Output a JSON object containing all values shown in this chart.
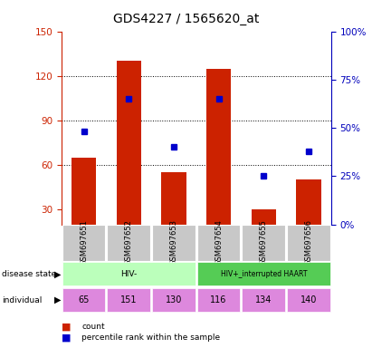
{
  "title": "GDS4227 / 1565620_at",
  "samples": [
    "GSM697651",
    "GSM697652",
    "GSM697653",
    "GSM697654",
    "GSM697655",
    "GSM697656"
  ],
  "counts": [
    65,
    130,
    55,
    125,
    30,
    50
  ],
  "percentiles": [
    48,
    65,
    40,
    65,
    25,
    38
  ],
  "ylim_left": [
    20,
    150
  ],
  "ylim_right": [
    0,
    100
  ],
  "yticks_left": [
    30,
    60,
    90,
    120,
    150
  ],
  "yticks_right": [
    0,
    25,
    50,
    75,
    100
  ],
  "bar_color": "#cc2200",
  "dot_color": "#0000cc",
  "disease_groups": [
    {
      "label": "HIV-",
      "start": 0,
      "end": 3,
      "color": "#bbffbb"
    },
    {
      "label": "HIV+_interrupted HAART",
      "start": 3,
      "end": 6,
      "color": "#55cc55"
    }
  ],
  "individual": [
    "65",
    "151",
    "130",
    "116",
    "134",
    "140"
  ],
  "individual_color": "#dd88dd",
  "sample_bg_color": "#c8c8c8",
  "title_fontsize": 10,
  "axis_color_left": "#cc2200",
  "axis_color_right": "#0000bb",
  "grid_lines": [
    60,
    90,
    120
  ],
  "legend": [
    {
      "color": "#cc2200",
      "label": "count"
    },
    {
      "color": "#0000cc",
      "label": "percentile rank within the sample"
    }
  ]
}
